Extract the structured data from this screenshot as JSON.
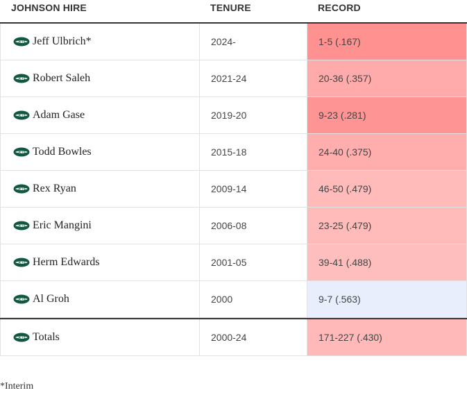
{
  "header": [
    "JOHNSON HIRE",
    "TENURE",
    "RECORD"
  ],
  "rows": [
    {
      "name": "Jeff Ulbrich*",
      "tenure": "2024-",
      "record": "1-5 (.167)",
      "color": "#ff9191"
    },
    {
      "name": "Robert Saleh",
      "tenure": "2021-24",
      "record": "20-36 (.357)",
      "color": "#ffabab"
    },
    {
      "name": "Adam Gase",
      "tenure": "2019-20",
      "record": "9-23 (.281)",
      "color": "#ff9494"
    },
    {
      "name": "Todd Bowles",
      "tenure": "2015-18",
      "record": "24-40 (.375)",
      "color": "#ffadad"
    },
    {
      "name": "Rex Ryan",
      "tenure": "2009-14",
      "record": "46-50 (.479)",
      "color": "#ffbaba"
    },
    {
      "name": "Eric Mangini",
      "tenure": "2006-08",
      "record": "23-25 (.479)",
      "color": "#ffbaba"
    },
    {
      "name": "Herm Edwards",
      "tenure": "2001-05",
      "record": "39-41 (.488)",
      "color": "#ffbebe"
    },
    {
      "name": "Al Groh",
      "tenure": "2000",
      "record": "9-7 (.563)",
      "color": "#e8eefb"
    }
  ],
  "totals": {
    "name": "Totals",
    "tenure": "2000-24",
    "record": "171-227 (.430)",
    "color": "#ffb9b9"
  },
  "footnote": "*Interim"
}
